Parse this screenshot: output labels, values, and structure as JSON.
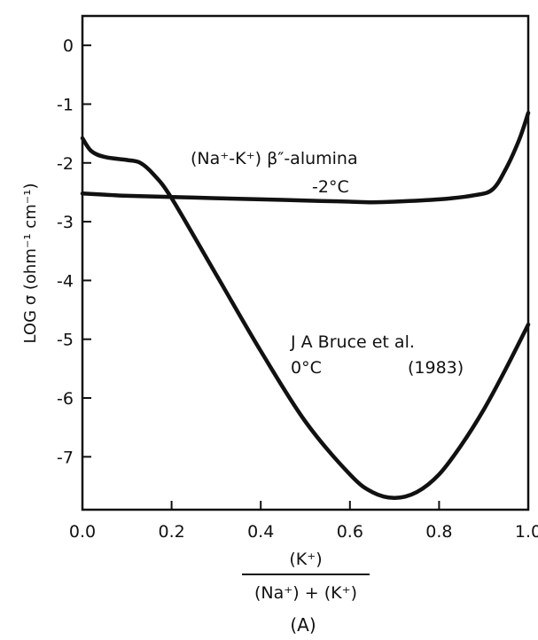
{
  "chart_data": {
    "type": "line",
    "title": "",
    "xlabel_numerator": "(K⁺)",
    "xlabel_denominator": "(Na⁺) + (K⁺)",
    "ylabel": "LOG σ (ohm⁻¹ cm⁻¹)",
    "panel_label": "(A)",
    "xlim": [
      0.0,
      1.0
    ],
    "ylim": [
      -7.9,
      0.5
    ],
    "grid": false,
    "legend": "none",
    "x_ticks": [
      "0.0",
      "0.2",
      "0.4",
      "0.6",
      "0.8",
      "1.0"
    ],
    "y_ticks": [
      "0",
      "-1",
      "-2",
      "-3",
      "-4",
      "-5",
      "-6",
      "-7"
    ],
    "annotations": [
      {
        "id": "glass-label",
        "lines": [
          "(Na⁺-K⁺) β″-alumina",
          "-2°C"
        ]
      },
      {
        "id": "bruce-label",
        "lines": [
          "J A Bruce et al.",
          "0°C",
          "(1983)"
        ]
      }
    ],
    "series": [
      {
        "x": [
          0.0,
          0.05,
          0.1,
          0.2,
          0.3,
          0.4,
          0.5,
          0.6,
          0.65,
          0.7,
          0.8,
          0.88,
          0.92,
          0.95,
          0.98,
          1.0
        ],
        "y": [
          -2.52,
          -2.54,
          -2.56,
          -2.58,
          -2.6,
          -2.62,
          -2.64,
          -2.66,
          -2.67,
          -2.66,
          -2.62,
          -2.55,
          -2.45,
          -2.1,
          -1.6,
          -1.15
        ]
      },
      {
        "x": [
          0.0,
          0.02,
          0.05,
          0.1,
          0.13,
          0.16,
          0.2,
          0.3,
          0.4,
          0.5,
          0.6,
          0.65,
          0.7,
          0.75,
          0.8,
          0.85,
          0.9,
          0.95,
          1.0
        ],
        "y": [
          -1.58,
          -1.8,
          -1.9,
          -1.95,
          -2.0,
          -2.2,
          -2.6,
          -3.9,
          -5.2,
          -6.4,
          -7.3,
          -7.6,
          -7.7,
          -7.6,
          -7.3,
          -6.8,
          -6.2,
          -5.5,
          -4.75
        ]
      }
    ]
  }
}
